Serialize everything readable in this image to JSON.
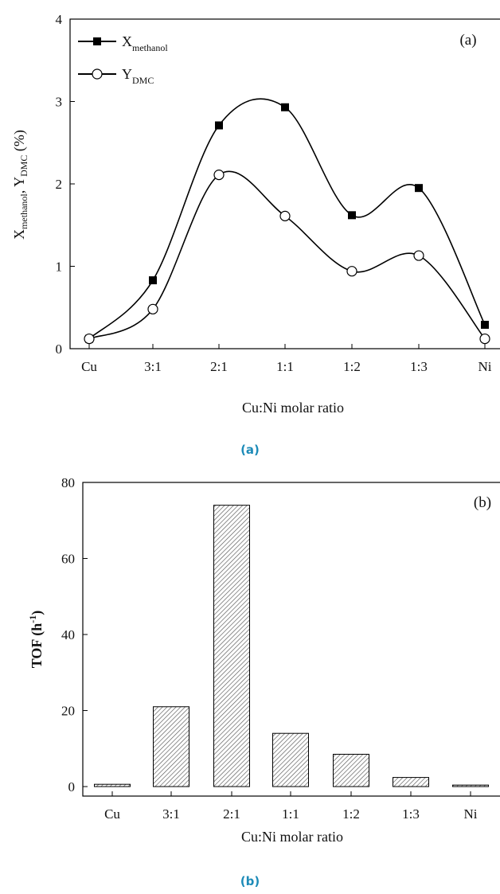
{
  "figure": {
    "caption_a": "(a)",
    "caption_b": "(b)",
    "caption_color": "#1d8bb8"
  },
  "chart_data": [
    {
      "type": "line",
      "panel_label": "(a)",
      "categories": [
        "Cu",
        "3:1",
        "2:1",
        "1:1",
        "1:2",
        "1:3",
        "Ni"
      ],
      "xlabel": "Cu:Ni molar ratio",
      "ylabel": {
        "main1": "X",
        "sub1": "methanol",
        "main2": ", Y",
        "sub2": "DMC",
        "main3": " (%)"
      },
      "ylim": [
        0,
        4
      ],
      "yticks": [
        0,
        1,
        2,
        3,
        4
      ],
      "series": [
        {
          "name": "X",
          "name_sub": "methanol",
          "marker": "filled-square",
          "values": [
            0.12,
            0.83,
            2.71,
            2.93,
            1.62,
            1.95,
            0.29
          ]
        },
        {
          "name": "Y",
          "name_sub": "DMC",
          "marker": "open-circle",
          "values": [
            0.12,
            0.48,
            2.11,
            1.61,
            0.94,
            1.13,
            0.12
          ]
        }
      ],
      "legend_position": "top-left",
      "grid": false
    },
    {
      "type": "bar",
      "panel_label": "(b)",
      "categories": [
        "Cu",
        "3:1",
        "2:1",
        "1:1",
        "1:2",
        "1:3",
        "Ni"
      ],
      "values": [
        0.6,
        21.0,
        74.0,
        14.0,
        8.5,
        2.4,
        0.4
      ],
      "xlabel": "Cu:Ni molar ratio",
      "ylabel": "TOF (h",
      "ylabel_sup": "-1",
      "ylabel_end": ")",
      "ylim": [
        -2.5,
        80
      ],
      "yticks": [
        0,
        20,
        40,
        60,
        80
      ],
      "bar_fill": "hatched",
      "grid": false
    }
  ]
}
